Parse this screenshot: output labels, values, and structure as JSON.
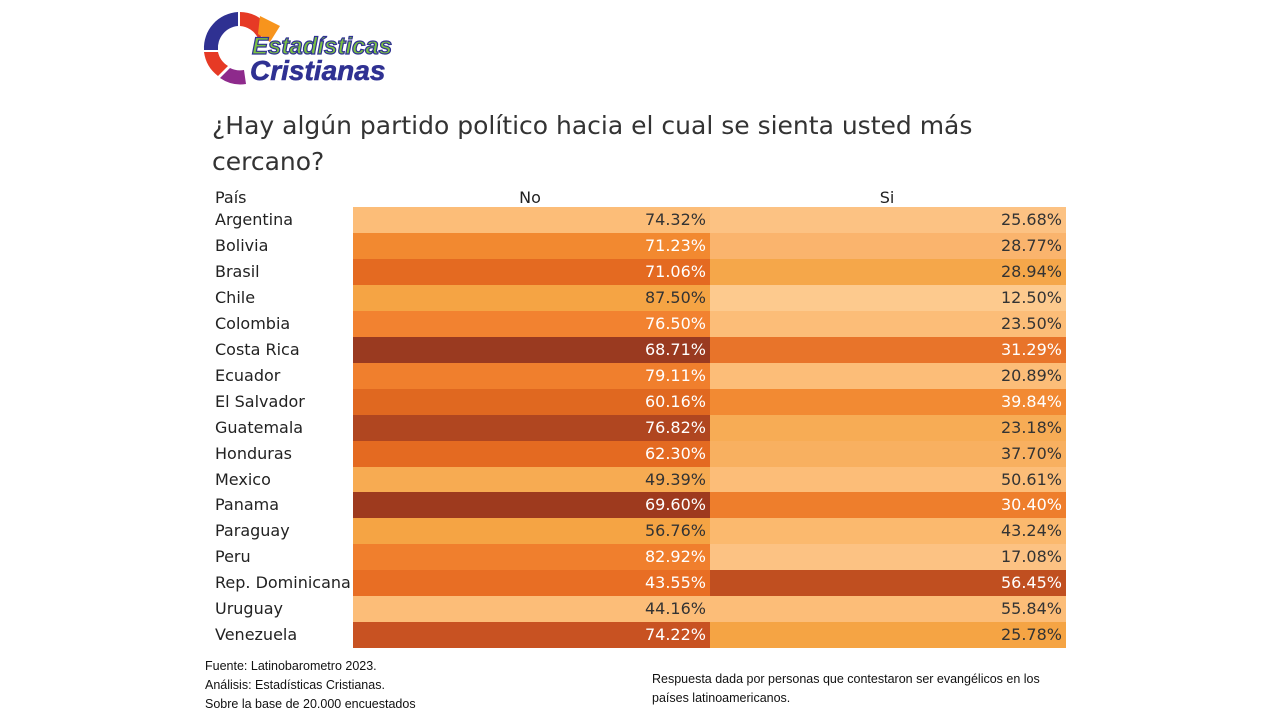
{
  "logo": {
    "line1": "Estadísticas",
    "line2": "Cristianas",
    "colors": [
      "#2f3192",
      "#e63a25",
      "#f7941d",
      "#8e2a8c",
      "#7ac143"
    ]
  },
  "title": "¿Hay algún partido político hacia el cual se sienta usted más cercano?",
  "headers": {
    "country": "País",
    "no": "No",
    "si": "Si"
  },
  "chart_data": {
    "type": "table",
    "title": "¿Hay algún partido político hacia el cual se sienta usted más cercano?",
    "columns": [
      "País",
      "No",
      "Si"
    ],
    "rows": [
      {
        "country": "Argentina",
        "no": "74.32%",
        "si": "25.68%",
        "no_color": "#fcbd78",
        "si_color": "#fcc283"
      },
      {
        "country": "Bolivia",
        "no": "71.23%",
        "si": "28.77%",
        "no_color": "#f28930",
        "si_color": "#fab46d"
      },
      {
        "country": "Brasil",
        "no": "71.06%",
        "si": "28.94%",
        "no_color": "#e46a21",
        "si_color": "#f5a74a"
      },
      {
        "country": "Chile",
        "no": "87.50%",
        "si": "12.50%",
        "no_color": "#f5a444",
        "si_color": "#fdca8e"
      },
      {
        "country": "Colombia",
        "no": "76.50%",
        "si": "23.50%",
        "no_color": "#f28230",
        "si_color": "#fcbd78"
      },
      {
        "country": "Costa Rica",
        "no": "68.71%",
        "si": "31.29%",
        "no_color": "#9a3a20",
        "si_color": "#e8742a"
      },
      {
        "country": "Ecuador",
        "no": "79.11%",
        "si": "20.89%",
        "no_color": "#f07f2d",
        "si_color": "#fcbd78"
      },
      {
        "country": "El Salvador",
        "no": "60.16%",
        "si": "39.84%",
        "no_color": "#e06820",
        "si_color": "#f28a33"
      },
      {
        "country": "Guatemala",
        "no": "76.82%",
        "si": "23.18%",
        "no_color": "#b04620",
        "si_color": "#f7ac55"
      },
      {
        "country": "Honduras",
        "no": "62.30%",
        "si": "37.70%",
        "no_color": "#e46a21",
        "si_color": "#f8b060"
      },
      {
        "country": "Mexico",
        "no": "49.39%",
        "si": "50.61%",
        "no_color": "#f7ab52",
        "si_color": "#fcbd78"
      },
      {
        "country": "Panama",
        "no": "69.60%",
        "si": "30.40%",
        "no_color": "#9e3a1e",
        "si_color": "#ee7e2c"
      },
      {
        "country": "Paraguay",
        "no": "56.76%",
        "si": "43.24%",
        "no_color": "#f5a444",
        "si_color": "#fbb96e"
      },
      {
        "country": "Peru",
        "no": "82.92%",
        "si": "17.08%",
        "no_color": "#f07f2d",
        "si_color": "#fcc283"
      },
      {
        "country": "Rep. Dominicana",
        "no": "43.55%",
        "si": "56.45%",
        "no_color": "#e86e24",
        "si_color": "#c04f20"
      },
      {
        "country": "Uruguay",
        "no": "44.16%",
        "si": "55.84%",
        "no_color": "#fcbd78",
        "si_color": "#fcbd78"
      },
      {
        "country": "Venezuela",
        "no": "74.22%",
        "si": "25.78%",
        "no_color": "#c85222",
        "si_color": "#f5a444"
      }
    ]
  },
  "footer": {
    "source": "Fuente: Latinobarometro 2023.",
    "analysis": "Análisis: Estadísticas Cristianas.",
    "base": "Sobre la base de 20.000 encuestados",
    "note": "Respuesta dada por personas que contestaron ser evangélicos en los países latinoamericanos."
  }
}
